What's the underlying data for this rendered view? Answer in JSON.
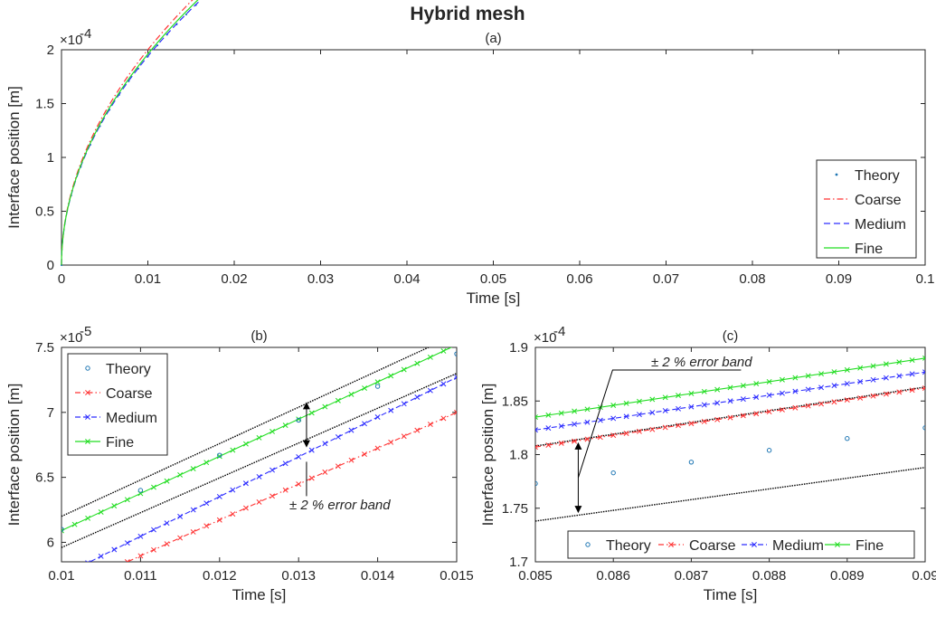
{
  "figure": {
    "title": "Hybrid mesh"
  },
  "colors": {
    "theory": "#1f77b4",
    "coarse": "#ff3333",
    "medium": "#2d2dff",
    "fine": "#22dd22",
    "band": "#000000",
    "axis": "#262626"
  },
  "chart_data": [
    {
      "id": "a",
      "type": "line",
      "title": "(a)",
      "xlabel": "Time [s]",
      "ylabel": "Interface position [m]",
      "xlim": [
        0,
        0.1
      ],
      "ylim": [
        0,
        2
      ],
      "exponent_label": "×10",
      "exponent": "-4",
      "xticks": [
        0,
        0.01,
        0.02,
        0.03,
        0.04,
        0.05,
        0.06,
        0.07,
        0.08,
        0.09,
        0.1
      ],
      "xtick_labels": [
        "0",
        "0.01",
        "0.02",
        "0.03",
        "0.04",
        "0.05",
        "0.06",
        "0.07",
        "0.08",
        "0.09",
        "0.1"
      ],
      "yticks": [
        0,
        0.5,
        1,
        1.5,
        2
      ],
      "ytick_labels": [
        "0",
        "0.5",
        "1",
        "1.5",
        "2"
      ],
      "legend_position": "bottom-right",
      "grid": false,
      "series": [
        {
          "name": "Theory",
          "style": "dots",
          "coef": 0.6124
        },
        {
          "name": "Coarse",
          "style": "dashdot",
          "coef": 0.6325
        },
        {
          "name": "Medium",
          "style": "dashed",
          "coef": 0.6135
        },
        {
          "name": "Fine",
          "style": "solid",
          "coef": 0.6198
        }
      ]
    },
    {
      "id": "b",
      "type": "line",
      "title": "(b)",
      "xlabel": "Time [s]",
      "ylabel": "Interface position [m]",
      "xlim": [
        0.01,
        0.015
      ],
      "ylim": [
        5.85,
        7.5
      ],
      "exponent_label": "×10",
      "exponent": "-5",
      "xticks": [
        0.01,
        0.011,
        0.012,
        0.013,
        0.014,
        0.015
      ],
      "xtick_labels": [
        "0.01",
        "0.011",
        "0.012",
        "0.013",
        "0.014",
        "0.015"
      ],
      "yticks": [
        6,
        6.5,
        7,
        7.5
      ],
      "ytick_labels": [
        "6",
        "6.5",
        "7",
        "7.5"
      ],
      "legend_position": "top-left",
      "grid": false,
      "annotation": "± 2 % error band",
      "theory_points": [
        [
          0.01,
          6.1
        ],
        [
          0.011,
          6.4
        ],
        [
          0.012,
          6.67
        ],
        [
          0.013,
          6.94
        ],
        [
          0.014,
          7.2
        ],
        [
          0.015,
          7.45
        ]
      ],
      "lines": [
        {
          "name": "Coarse",
          "start": [
            0.01,
            5.62
          ],
          "end": [
            0.015,
            7.0
          ]
        },
        {
          "name": "Medium",
          "start": [
            0.01,
            5.74
          ],
          "end": [
            0.015,
            7.27
          ]
        },
        {
          "name": "Fine",
          "start": [
            0.01,
            6.09
          ],
          "end": [
            0.015,
            7.52
          ]
        }
      ],
      "band_lines": [
        {
          "start": [
            0.01,
            5.96
          ],
          "end": [
            0.015,
            7.3
          ]
        },
        {
          "start": [
            0.01,
            6.2
          ],
          "end": [
            0.015,
            7.6
          ]
        }
      ]
    },
    {
      "id": "c",
      "type": "line",
      "title": "(c)",
      "xlabel": "Time [s]",
      "ylabel": "Interface position [m]",
      "xlim": [
        0.085,
        0.09
      ],
      "ylim": [
        1.7,
        1.9
      ],
      "exponent_label": "×10",
      "exponent": "-4",
      "xticks": [
        0.085,
        0.086,
        0.087,
        0.088,
        0.089,
        0.09
      ],
      "xtick_labels": [
        "0.085",
        "0.086",
        "0.087",
        "0.088",
        "0.089",
        "0.09"
      ],
      "yticks": [
        1.7,
        1.75,
        1.8,
        1.85,
        1.9
      ],
      "ytick_labels": [
        "1.7",
        "1.75",
        "1.8",
        "1.85",
        "1.9"
      ],
      "legend_position": "bottom",
      "grid": false,
      "annotation": "± 2 % error band",
      "theory_points": [
        [
          0.085,
          1.773
        ],
        [
          0.086,
          1.783
        ],
        [
          0.087,
          1.793
        ],
        [
          0.088,
          1.804
        ],
        [
          0.089,
          1.815
        ],
        [
          0.09,
          1.825
        ]
      ],
      "lines": [
        {
          "name": "Coarse",
          "start": [
            0.085,
            1.807
          ],
          "end": [
            0.09,
            1.862
          ]
        },
        {
          "name": "Medium",
          "start": [
            0.085,
            1.823
          ],
          "end": [
            0.09,
            1.877
          ]
        },
        {
          "name": "Fine",
          "start": [
            0.085,
            1.835
          ],
          "end": [
            0.09,
            1.89
          ]
        }
      ],
      "band_lines": [
        {
          "start": [
            0.085,
            1.738
          ],
          "end": [
            0.09,
            1.788
          ]
        },
        {
          "start": [
            0.085,
            1.808
          ],
          "end": [
            0.09,
            1.863
          ]
        }
      ]
    }
  ],
  "legend": [
    "Theory",
    "Coarse",
    "Medium",
    "Fine"
  ]
}
